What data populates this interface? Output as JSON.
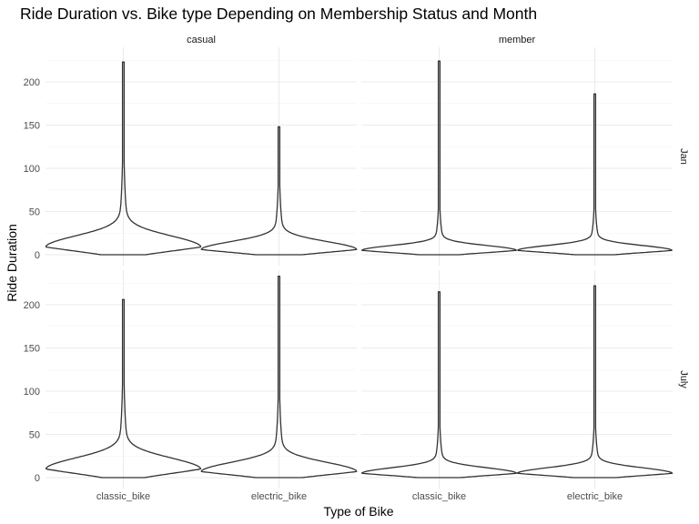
{
  "chart_data": {
    "type": "violin",
    "title": "Ride Duration vs. Bike type Depending on Membership Status and Month",
    "xlabel": "Type of Bike",
    "ylabel": "Ride Duration",
    "categories": [
      "classic_bike",
      "electric_bike"
    ],
    "column_facets": [
      "casual",
      "member"
    ],
    "row_facets": [
      "Jan",
      "July"
    ],
    "ylim": [
      0,
      240
    ],
    "y_ticks": [
      0,
      50,
      100,
      150,
      200
    ],
    "grid": true,
    "panels": [
      {
        "column": "casual",
        "row": "Jan",
        "violins": [
          {
            "category": "classic_bike",
            "max": 223,
            "mode": 9,
            "spread": 18
          },
          {
            "category": "electric_bike",
            "max": 148,
            "mode": 6,
            "spread": 13
          }
        ]
      },
      {
        "column": "member",
        "row": "Jan",
        "violins": [
          {
            "category": "classic_bike",
            "max": 224,
            "mode": 5,
            "spread": 8
          },
          {
            "category": "electric_bike",
            "max": 186,
            "mode": 5,
            "spread": 8
          }
        ]
      },
      {
        "column": "casual",
        "row": "July",
        "violins": [
          {
            "category": "classic_bike",
            "max": 206,
            "mode": 10,
            "spread": 18
          },
          {
            "category": "electric_bike",
            "max": 233,
            "mode": 7,
            "spread": 15
          }
        ]
      },
      {
        "column": "member",
        "row": "July",
        "violins": [
          {
            "category": "classic_bike",
            "max": 215,
            "mode": 5,
            "spread": 9
          },
          {
            "category": "electric_bike",
            "max": 222,
            "mode": 5,
            "spread": 9
          }
        ]
      }
    ]
  }
}
